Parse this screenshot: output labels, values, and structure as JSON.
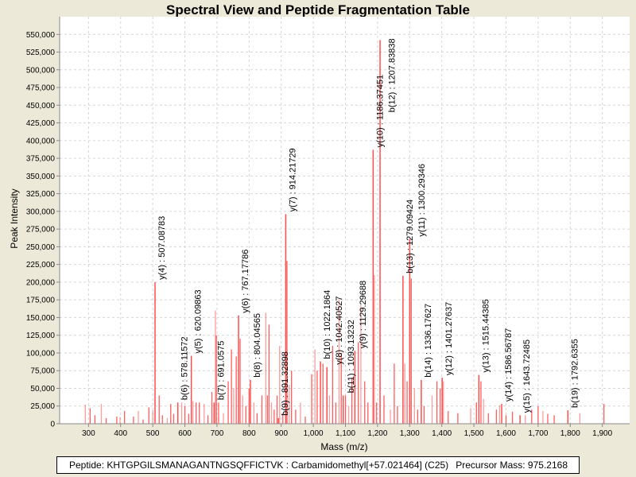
{
  "chart_data": {
    "type": "bar",
    "title": "Spectral View and Peptide Fragmentation Table",
    "xlabel": "Mass (m/z)",
    "ylabel": "Peak Intensity",
    "xlim": [
      210,
      1985
    ],
    "ylim": [
      0,
      575000
    ],
    "x_ticks": [
      300,
      400,
      500,
      600,
      700,
      800,
      900,
      1000,
      1100,
      1200,
      1300,
      1400,
      1500,
      1600,
      1700,
      1800,
      1900
    ],
    "x_tick_labels": [
      "300",
      "400",
      "500",
      "600",
      "700",
      "800",
      "900",
      "1,000",
      "1,100",
      "1,200",
      "1,300",
      "1,400",
      "1,500",
      "1,600",
      "1,700",
      "1,800",
      "1,900"
    ],
    "y_ticks": [
      0,
      25000,
      50000,
      75000,
      100000,
      125000,
      150000,
      175000,
      200000,
      225000,
      250000,
      275000,
      300000,
      325000,
      350000,
      375000,
      400000,
      425000,
      450000,
      475000,
      500000,
      525000,
      550000
    ],
    "y_tick_labels": [
      "0",
      "25,000",
      "50,000",
      "75,000",
      "100,000",
      "125,000",
      "150,000",
      "175,000",
      "200,000",
      "225,000",
      "250,000",
      "275,000",
      "300,000",
      "325,000",
      "350,000",
      "375,000",
      "400,000",
      "425,000",
      "450,000",
      "475,000",
      "500,000",
      "525,000",
      "550,000"
    ],
    "grid": true,
    "peak_color": "#FF4D4D",
    "annotated_peaks": [
      {
        "mz": 507.08783,
        "intensity": 200000,
        "label": "y(4) : 507.08783"
      },
      {
        "mz": 578.11572,
        "intensity": 30000,
        "label": "b(6) : 578.11572"
      },
      {
        "mz": 620.09863,
        "intensity": 96000,
        "label": "y(5) : 620.09863"
      },
      {
        "mz": 691.0575,
        "intensity": 30000,
        "label": "b(7) : 691.0575"
      },
      {
        "mz": 767.17786,
        "intensity": 153000,
        "label": "y(6) : 767.17786"
      },
      {
        "mz": 804.04565,
        "intensity": 62000,
        "label": "b(8) : 804.04565"
      },
      {
        "mz": 891.32898,
        "intensity": 8000,
        "label": "b(9) : 891.32898"
      },
      {
        "mz": 914.21729,
        "intensity": 296000,
        "label": "y(7) : 914.21729"
      },
      {
        "mz": 1022.1864,
        "intensity": 88000,
        "label": "b(10) : 1022.1864"
      },
      {
        "mz": 1042.40527,
        "intensity": 80000,
        "label": "y(8) : 1042.40527"
      },
      {
        "mz": 1093.13232,
        "intensity": 40000,
        "label": "b(11) : 1093.13232"
      },
      {
        "mz": 1129.29688,
        "intensity": 103000,
        "label": "y(9) : 1129.29688"
      },
      {
        "mz": 1186.37451,
        "intensity": 387000,
        "label": "y(10) : 1186.37451"
      },
      {
        "mz": 1207.83838,
        "intensity": 542000,
        "label": "b(12) : 1207.83838"
      },
      {
        "mz": 1279.09424,
        "intensity": 209000,
        "label": "b(13) : 1279.09424"
      },
      {
        "mz": 1300.29346,
        "intensity": 261000,
        "label": "y(11) : 1300.29346"
      },
      {
        "mz": 1336.17627,
        "intensity": 62000,
        "label": "b(14) : 1336.17627"
      },
      {
        "mz": 1401.27637,
        "intensity": 65000,
        "label": "y(12) : 1401.27637"
      },
      {
        "mz": 1515.44385,
        "intensity": 69000,
        "label": "y(13) : 1515.44385"
      },
      {
        "mz": 1586.56787,
        "intensity": 28000,
        "label": "y(14) : 1586.56787"
      },
      {
        "mz": 1643.72485,
        "intensity": 12000,
        "label": "y(15) : 1643.72485"
      },
      {
        "mz": 1792.6355,
        "intensity": 19000,
        "label": "b(19) : 1792.6355"
      }
    ],
    "other_peaks": [
      [
        290,
        27000
      ],
      [
        305,
        22000
      ],
      [
        320,
        12000
      ],
      [
        340,
        28000
      ],
      [
        355,
        8000
      ],
      [
        388,
        10000
      ],
      [
        398,
        9000
      ],
      [
        412,
        18000
      ],
      [
        440,
        10000
      ],
      [
        455,
        18000
      ],
      [
        470,
        6000
      ],
      [
        488,
        23000
      ],
      [
        500,
        19000
      ],
      [
        520,
        40000
      ],
      [
        530,
        12000
      ],
      [
        545,
        8000
      ],
      [
        556,
        28000
      ],
      [
        565,
        14000
      ],
      [
        590,
        30000
      ],
      [
        600,
        25000
      ],
      [
        612,
        14000
      ],
      [
        625,
        32000
      ],
      [
        635,
        30000
      ],
      [
        645,
        30000
      ],
      [
        660,
        28000
      ],
      [
        672,
        12000
      ],
      [
        684,
        45000
      ],
      [
        695,
        160000
      ],
      [
        698,
        125000
      ],
      [
        705,
        30000
      ],
      [
        720,
        15000
      ],
      [
        735,
        60000
      ],
      [
        745,
        105000
      ],
      [
        752,
        50000
      ],
      [
        760,
        95000
      ],
      [
        772,
        120000
      ],
      [
        780,
        40000
      ],
      [
        790,
        25000
      ],
      [
        800,
        50000
      ],
      [
        815,
        30000
      ],
      [
        825,
        15000
      ],
      [
        840,
        40000
      ],
      [
        852,
        157000
      ],
      [
        857,
        40000
      ],
      [
        862,
        140000
      ],
      [
        870,
        30000
      ],
      [
        878,
        20000
      ],
      [
        887,
        40000
      ],
      [
        895,
        110000
      ],
      [
        905,
        15000
      ],
      [
        918,
        230000
      ],
      [
        925,
        55000
      ],
      [
        932,
        75000
      ],
      [
        945,
        20000
      ],
      [
        960,
        30000
      ],
      [
        975,
        10000
      ],
      [
        995,
        70000
      ],
      [
        1005,
        105000
      ],
      [
        1012,
        75000
      ],
      [
        1030,
        85000
      ],
      [
        1050,
        40000
      ],
      [
        1060,
        110000
      ],
      [
        1070,
        30000
      ],
      [
        1080,
        175000
      ],
      [
        1087,
        100000
      ],
      [
        1100,
        40000
      ],
      [
        1110,
        25000
      ],
      [
        1120,
        65000
      ],
      [
        1140,
        115000
      ],
      [
        1148,
        168000
      ],
      [
        1160,
        60000
      ],
      [
        1170,
        30000
      ],
      [
        1190,
        210000
      ],
      [
        1197,
        30000
      ],
      [
        1220,
        40000
      ],
      [
        1240,
        20000
      ],
      [
        1252,
        85000
      ],
      [
        1262,
        25000
      ],
      [
        1285,
        85000
      ],
      [
        1292,
        60000
      ],
      [
        1305,
        205000
      ],
      [
        1315,
        50000
      ],
      [
        1325,
        20000
      ],
      [
        1345,
        25000
      ],
      [
        1370,
        40000
      ],
      [
        1385,
        60000
      ],
      [
        1395,
        50000
      ],
      [
        1405,
        60000
      ],
      [
        1420,
        18000
      ],
      [
        1450,
        15000
      ],
      [
        1490,
        22000
      ],
      [
        1508,
        30000
      ],
      [
        1522,
        60000
      ],
      [
        1530,
        35000
      ],
      [
        1545,
        15000
      ],
      [
        1570,
        20000
      ],
      [
        1580,
        26000
      ],
      [
        1600,
        12000
      ],
      [
        1620,
        17000
      ],
      [
        1660,
        12000
      ],
      [
        1680,
        20000
      ],
      [
        1700,
        25000
      ],
      [
        1715,
        18000
      ],
      [
        1730,
        14000
      ],
      [
        1750,
        12000
      ],
      [
        1830,
        15000
      ],
      [
        1905,
        28000
      ]
    ]
  },
  "footer": {
    "peptide": "Peptide: KHTGPGILSMANAGANTNGSQFFICTVK : Carbamidomethyl[+57.021464] (C25)",
    "precursor": "Precursor Mass: 975.2168"
  }
}
